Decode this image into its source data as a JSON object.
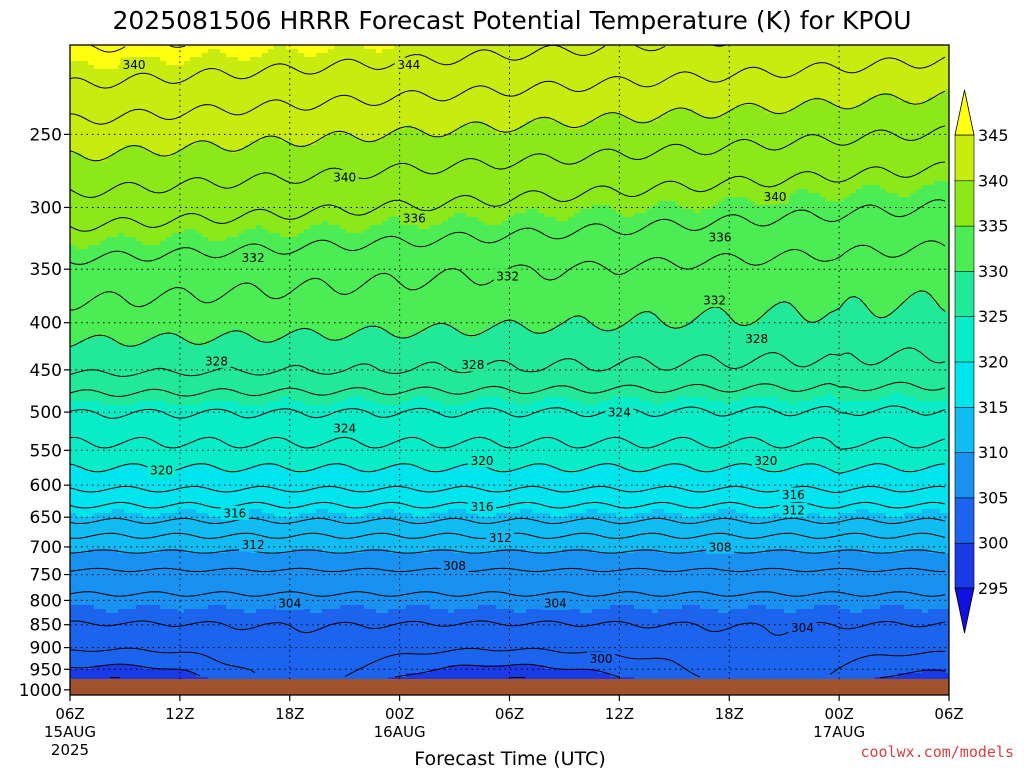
{
  "chart_data": {
    "type": "heatmap",
    "title": "2025081506 HRRR Forecast Potential Temperature (K) for KPOU",
    "xlabel": "Forecast Time (UTC)",
    "ylabel": "",
    "credit": "coolwx.com/models",
    "x_ticks": [
      {
        "hour": 0,
        "label": "06Z",
        "sub1": "15AUG",
        "sub2": "2025"
      },
      {
        "hour": 6,
        "label": "12Z",
        "sub1": "",
        "sub2": ""
      },
      {
        "hour": 12,
        "label": "18Z",
        "sub1": "",
        "sub2": ""
      },
      {
        "hour": 18,
        "label": "00Z",
        "sub1": "16AUG",
        "sub2": ""
      },
      {
        "hour": 24,
        "label": "06Z",
        "sub1": "",
        "sub2": ""
      },
      {
        "hour": 30,
        "label": "12Z",
        "sub1": "",
        "sub2": ""
      },
      {
        "hour": 36,
        "label": "18Z",
        "sub1": "",
        "sub2": ""
      },
      {
        "hour": 42,
        "label": "00Z",
        "sub1": "17AUG",
        "sub2": ""
      },
      {
        "hour": 48,
        "label": "06Z",
        "sub1": "",
        "sub2": ""
      }
    ],
    "xlim": [
      0,
      48
    ],
    "y_ticks": [
      250,
      300,
      350,
      400,
      450,
      500,
      550,
      600,
      650,
      700,
      750,
      800,
      850,
      900,
      950,
      1000
    ],
    "ylim": [
      200,
      1013
    ],
    "y_scale": "log",
    "y_inverted": true,
    "grid": true,
    "colorbar": {
      "levels": [
        295,
        300,
        305,
        310,
        315,
        320,
        325,
        330,
        335,
        340,
        345
      ],
      "colors": [
        "#1010e0",
        "#1a3ae8",
        "#1c64ee",
        "#1891f0",
        "#10bcf2",
        "#00e4ee",
        "#08edc8",
        "#22e89a",
        "#4cec54",
        "#8ce818",
        "#c8ec10",
        "#ffff10"
      ],
      "extend": "both",
      "placement": "right"
    },
    "terrain_color": "#a0522d",
    "profile_pressures": [
      1000,
      950,
      900,
      850,
      800,
      750,
      700,
      650,
      600,
      550,
      500,
      450,
      400,
      350,
      300,
      250,
      200
    ],
    "profile_theta": [
      300,
      301.5,
      303,
      304,
      305.5,
      307.5,
      310.5,
      314.5,
      318.5,
      321.5,
      324,
      328,
      330.5,
      332.5,
      336,
      340,
      345
    ],
    "contour_labels": [
      {
        "t": 3.5,
        "p": 210,
        "v": "340"
      },
      {
        "t": 18.5,
        "p": 210,
        "v": "344"
      },
      {
        "t": 15,
        "p": 278,
        "v": "340"
      },
      {
        "t": 38.5,
        "p": 292,
        "v": "340"
      },
      {
        "t": 18.8,
        "p": 308,
        "v": "336"
      },
      {
        "t": 35.5,
        "p": 323,
        "v": "336"
      },
      {
        "t": 10,
        "p": 340,
        "v": "332"
      },
      {
        "t": 23.9,
        "p": 356,
        "v": "332"
      },
      {
        "t": 35.2,
        "p": 378,
        "v": "332"
      },
      {
        "t": 8,
        "p": 440,
        "v": "328"
      },
      {
        "t": 22,
        "p": 444,
        "v": "328"
      },
      {
        "t": 37.5,
        "p": 416,
        "v": "328"
      },
      {
        "t": 15,
        "p": 520,
        "v": "324"
      },
      {
        "t": 30,
        "p": 500,
        "v": "324"
      },
      {
        "t": 5,
        "p": 578,
        "v": "320"
      },
      {
        "t": 22.5,
        "p": 564,
        "v": "320"
      },
      {
        "t": 38,
        "p": 564,
        "v": "320"
      },
      {
        "t": 9,
        "p": 643,
        "v": "316"
      },
      {
        "t": 22.5,
        "p": 633,
        "v": "316"
      },
      {
        "t": 39.5,
        "p": 614,
        "v": "316"
      },
      {
        "t": 39.5,
        "p": 638,
        "v": "312"
      },
      {
        "t": 10,
        "p": 696,
        "v": "312"
      },
      {
        "t": 23.5,
        "p": 684,
        "v": "312"
      },
      {
        "t": 21,
        "p": 733,
        "v": "308"
      },
      {
        "t": 35.5,
        "p": 700,
        "v": "308"
      },
      {
        "t": 12,
        "p": 805,
        "v": "304"
      },
      {
        "t": 26.5,
        "p": 805,
        "v": "304"
      },
      {
        "t": 40,
        "p": 856,
        "v": "304"
      },
      {
        "t": 29,
        "p": 925,
        "v": "300"
      }
    ]
  }
}
